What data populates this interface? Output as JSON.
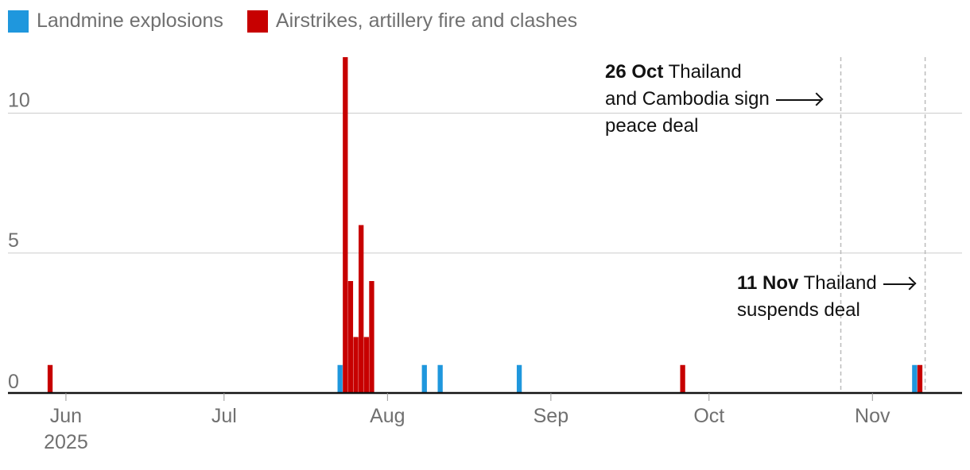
{
  "legend": {
    "items": [
      {
        "label": "Landmine explosions",
        "color": "#1f97dd"
      },
      {
        "label": "Airstrikes, artillery fire and clashes",
        "color": "#c70000"
      }
    ]
  },
  "annotations": {
    "oct": {
      "bold": "26 Oct",
      "text_lines": [
        "Thailand",
        "and Cambodia sign",
        "peace deal"
      ]
    },
    "nov": {
      "bold": "11 Nov",
      "text_lines": [
        "Thailand",
        "suspends deal"
      ]
    }
  },
  "chart_data": {
    "type": "bar",
    "stacked": true,
    "x_type": "date",
    "xlim": [
      "2025-05-21",
      "2025-11-18"
    ],
    "ylim": [
      0,
      12
    ],
    "y_ticks": [
      0,
      5,
      10
    ],
    "x_ticks": [
      {
        "date": "2025-06-01",
        "label": "Jun",
        "sublabel": "2025"
      },
      {
        "date": "2025-07-01",
        "label": "Jul"
      },
      {
        "date": "2025-08-01",
        "label": "Aug"
      },
      {
        "date": "2025-09-01",
        "label": "Sep"
      },
      {
        "date": "2025-10-01",
        "label": "Oct"
      },
      {
        "date": "2025-11-01",
        "label": "Nov"
      }
    ],
    "grid": true,
    "legend_position": "top-left",
    "series": [
      {
        "name": "Landmine explosions",
        "color": "#1f97dd",
        "points": [
          {
            "date": "2025-07-23",
            "value": 1
          },
          {
            "date": "2025-08-08",
            "value": 1
          },
          {
            "date": "2025-08-11",
            "value": 1
          },
          {
            "date": "2025-08-26",
            "value": 1
          },
          {
            "date": "2025-11-09",
            "value": 1
          }
        ]
      },
      {
        "name": "Airstrikes, artillery fire and clashes",
        "color": "#c70000",
        "points": [
          {
            "date": "2025-05-29",
            "value": 1
          },
          {
            "date": "2025-07-24",
            "value": 12
          },
          {
            "date": "2025-07-25",
            "value": 4
          },
          {
            "date": "2025-07-26",
            "value": 2
          },
          {
            "date": "2025-07-27",
            "value": 6
          },
          {
            "date": "2025-07-28",
            "value": 2
          },
          {
            "date": "2025-07-29",
            "value": 4
          },
          {
            "date": "2025-09-26",
            "value": 1
          },
          {
            "date": "2025-11-10",
            "value": 1
          }
        ]
      }
    ],
    "reference_lines": [
      {
        "date": "2025-10-26"
      },
      {
        "date": "2025-11-11"
      }
    ]
  }
}
